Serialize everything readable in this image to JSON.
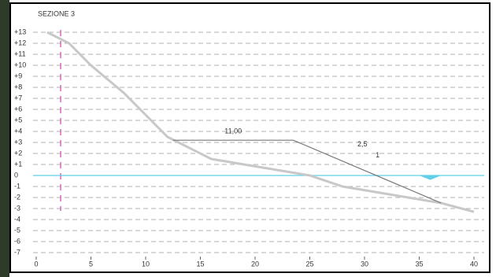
{
  "chart_data": {
    "type": "line",
    "title": "SEZIONE 3",
    "annotations": [
      "11,00",
      "2,5",
      "1"
    ],
    "xlim": [
      0,
      40
    ],
    "xticks": [
      0,
      5,
      10,
      15,
      20,
      25,
      30,
      35,
      40
    ],
    "ylim": [
      -7,
      13
    ],
    "yticks": [
      {
        "value": 13,
        "label": "+13"
      },
      {
        "value": 12,
        "label": "+12"
      },
      {
        "value": 11,
        "label": "+11"
      },
      {
        "value": 10,
        "label": "+10"
      },
      {
        "value": 9,
        "label": "+9"
      },
      {
        "value": 8,
        "label": "+8"
      },
      {
        "value": 7,
        "label": "+7"
      },
      {
        "value": 6,
        "label": "+6"
      },
      {
        "value": 5,
        "label": "+5"
      },
      {
        "value": 4,
        "label": "+4"
      },
      {
        "value": 3,
        "label": "+3"
      },
      {
        "value": 2,
        "label": "+2"
      },
      {
        "value": 1,
        "label": "+1"
      },
      0,
      -1,
      -2,
      -3,
      -4,
      -5,
      -6,
      -7
    ],
    "grid": true,
    "series": [
      {
        "color": "#c8c8c8",
        "x": [
          1,
          3,
          5,
          8,
          10,
          12,
          13,
          16,
          19,
          22,
          25,
          28,
          31,
          34,
          37,
          40
        ],
        "values": [
          13,
          12,
          10,
          7.5,
          5.5,
          3.5,
          3,
          1.5,
          1,
          0.5,
          0,
          -1,
          -1.5,
          -2,
          -2.5,
          -3.3
        ]
      },
      {
        "color": "#777777",
        "x": [
          12.5,
          23.5,
          37
        ],
        "values": [
          3.2,
          3.2,
          -2.5
        ]
      }
    ]
  }
}
